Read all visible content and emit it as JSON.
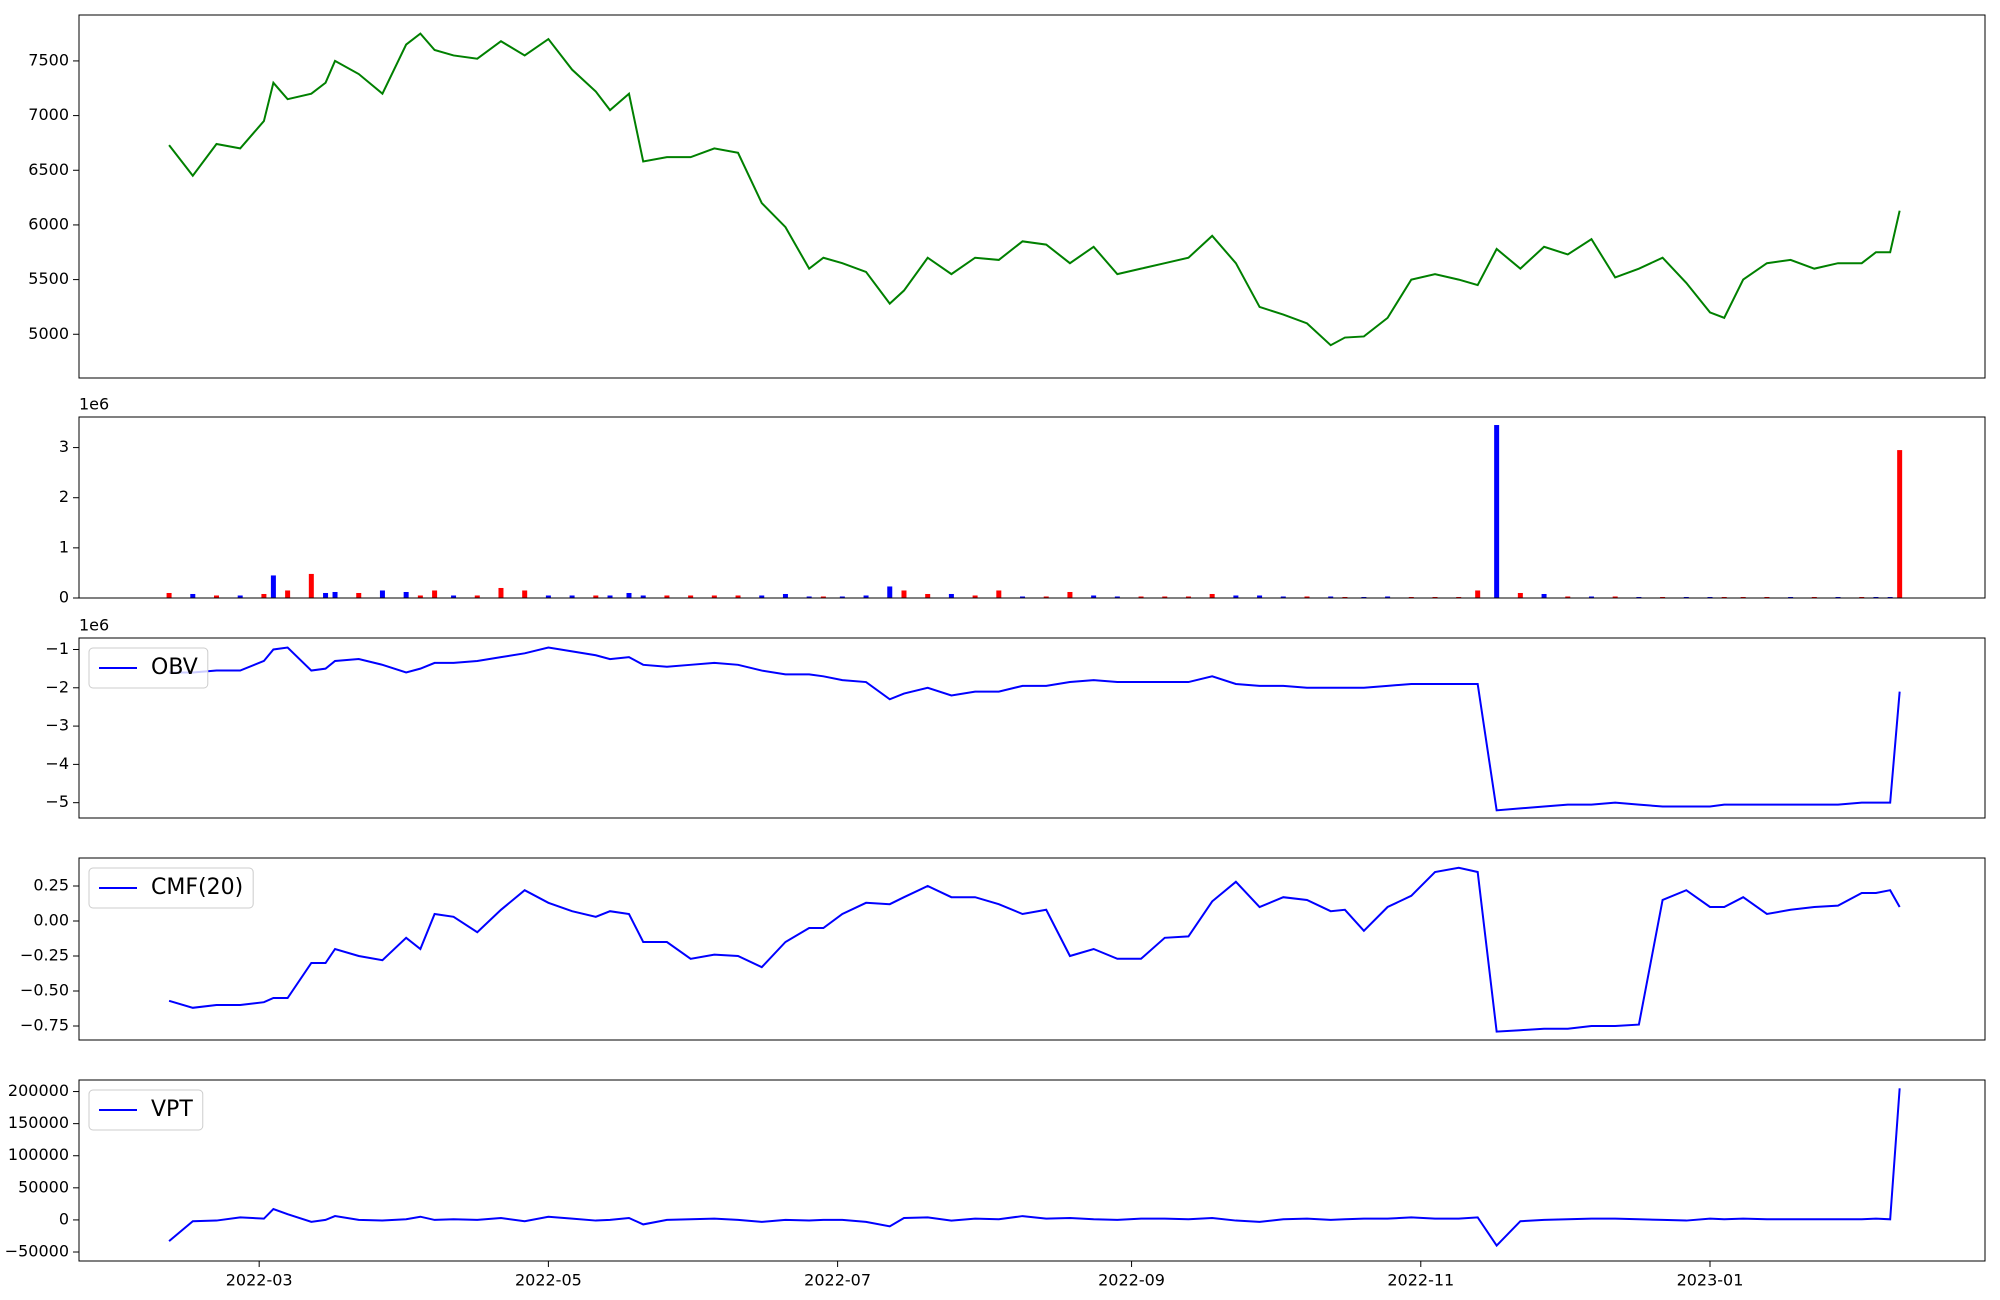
{
  "chart_data": [
    {
      "type": "line",
      "color": "green",
      "x": [
        40,
        45,
        50,
        55,
        60,
        62,
        65,
        70,
        73,
        75,
        80,
        85,
        90,
        93,
        96,
        100,
        105,
        110,
        115,
        120,
        125,
        130,
        133,
        137,
        140,
        145,
        150,
        155,
        160,
        165,
        170,
        175,
        178,
        182,
        187,
        192,
        195,
        200,
        205,
        210,
        215,
        220,
        225,
        230,
        235,
        240,
        245,
        250,
        255,
        260,
        265,
        270,
        275,
        280,
        285,
        288,
        292,
        297,
        302,
        307,
        312,
        316,
        320,
        325,
        330,
        335,
        340,
        345,
        350,
        355,
        360,
        365,
        368,
        372,
        377,
        382,
        387,
        392,
        397,
        400,
        403,
        405
      ],
      "values": [
        6730,
        6450,
        6740,
        6700,
        6950,
        7300,
        7150,
        7200,
        7300,
        7500,
        7380,
        7200,
        7650,
        7750,
        7600,
        7550,
        7520,
        7680,
        7550,
        7700,
        7420,
        7220,
        7050,
        7200,
        6580,
        6620,
        6620,
        6700,
        6660,
        6200,
        5980,
        5600,
        5700,
        5650,
        5570,
        5280,
        5400,
        5700,
        5550,
        5700,
        5680,
        5850,
        5820,
        5650,
        5800,
        5550,
        5600,
        5650,
        5700,
        5900,
        5650,
        5250,
        5180,
        5100,
        4900,
        4970,
        4980,
        5150,
        5500,
        5550,
        5500,
        5450,
        5780,
        5600,
        5800,
        5730,
        5870,
        5520,
        5600,
        5700,
        5470,
        5200,
        5150,
        5500,
        5650,
        5680,
        5600,
        5650,
        5650,
        5750,
        5750,
        6130
      ],
      "xlim": [
        21,
        423
      ],
      "ylim": [
        4600,
        7920
      ],
      "yticks": [
        5000,
        5500,
        6000,
        6500,
        7000,
        7500
      ]
    },
    {
      "type": "bar",
      "y_offset_label": "1e6",
      "x": [
        40,
        45,
        50,
        55,
        60,
        62,
        65,
        70,
        73,
        75,
        80,
        85,
        90,
        93,
        96,
        100,
        105,
        110,
        115,
        120,
        125,
        130,
        133,
        137,
        140,
        145,
        150,
        155,
        160,
        165,
        170,
        175,
        178,
        182,
        187,
        192,
        195,
        200,
        205,
        210,
        215,
        220,
        225,
        230,
        235,
        240,
        245,
        250,
        255,
        260,
        265,
        270,
        275,
        280,
        285,
        288,
        292,
        297,
        302,
        307,
        312,
        316,
        320,
        325,
        330,
        335,
        340,
        345,
        350,
        355,
        360,
        365,
        368,
        372,
        377,
        382,
        387,
        392,
        397,
        400,
        403,
        405
      ],
      "values": [
        0.1,
        0.08,
        0.05,
        0.05,
        0.08,
        0.45,
        0.15,
        0.48,
        0.1,
        0.12,
        0.1,
        0.15,
        0.12,
        0.05,
        0.15,
        0.05,
        0.05,
        0.2,
        0.15,
        0.05,
        0.05,
        0.05,
        0.05,
        0.1,
        0.05,
        0.05,
        0.05,
        0.05,
        0.05,
        0.05,
        0.08,
        0.03,
        0.03,
        0.03,
        0.05,
        0.23,
        0.15,
        0.08,
        0.08,
        0.05,
        0.15,
        0.03,
        0.03,
        0.12,
        0.05,
        0.03,
        0.03,
        0.03,
        0.03,
        0.08,
        0.05,
        0.05,
        0.03,
        0.03,
        0.03,
        0.02,
        0.02,
        0.03,
        0.02,
        0.02,
        0.02,
        0.15,
        3.45,
        0.1,
        0.08,
        0.03,
        0.03,
        0.03,
        0.02,
        0.02,
        0.02,
        0.02,
        0.02,
        0.02,
        0.02,
        0.02,
        0.02,
        0.02,
        0.02,
        0.02,
        0.02,
        2.95
      ],
      "colors": [
        "red",
        "blue",
        "red",
        "blue",
        "red",
        "blue",
        "red",
        "red",
        "blue",
        "blue",
        "red",
        "blue",
        "blue",
        "red",
        "red",
        "blue",
        "red",
        "red",
        "red",
        "blue",
        "blue",
        "red",
        "blue",
        "blue",
        "blue",
        "red",
        "red",
        "red",
        "red",
        "blue",
        "blue",
        "blue",
        "red",
        "blue",
        "blue",
        "blue",
        "red",
        "red",
        "blue",
        "red",
        "red",
        "blue",
        "red",
        "red",
        "blue",
        "blue",
        "red",
        "red",
        "red",
        "red",
        "blue",
        "blue",
        "blue",
        "red",
        "blue",
        "red",
        "blue",
        "blue",
        "red",
        "red",
        "red",
        "red",
        "blue",
        "red",
        "blue",
        "red",
        "blue",
        "red",
        "blue",
        "red",
        "blue",
        "blue",
        "red",
        "red",
        "red",
        "blue",
        "red",
        "blue",
        "red",
        "blue",
        "blue",
        "red"
      ],
      "xlim": [
        21,
        423
      ],
      "ylim": [
        0,
        3.61
      ],
      "yticks": [
        0,
        1,
        2,
        3
      ]
    },
    {
      "type": "line",
      "y_offset_label": "1e6",
      "legend": "upper left",
      "x": [
        40,
        45,
        50,
        55,
        60,
        62,
        65,
        70,
        73,
        75,
        80,
        85,
        90,
        93,
        96,
        100,
        105,
        110,
        115,
        120,
        125,
        130,
        133,
        137,
        140,
        145,
        150,
        155,
        160,
        165,
        170,
        175,
        178,
        182,
        187,
        192,
        195,
        200,
        205,
        210,
        215,
        220,
        225,
        230,
        235,
        240,
        245,
        250,
        255,
        260,
        265,
        270,
        275,
        280,
        285,
        288,
        292,
        297,
        302,
        307,
        312,
        316,
        320,
        325,
        330,
        335,
        340,
        345,
        350,
        355,
        360,
        365,
        368,
        372,
        377,
        382,
        387,
        392,
        397,
        400,
        403,
        405
      ],
      "series": [
        {
          "name": "OBV",
          "color": "blue",
          "values": [
            -1.6,
            -1.6,
            -1.55,
            -1.55,
            -1.3,
            -1.0,
            -0.95,
            -1.55,
            -1.5,
            -1.3,
            -1.25,
            -1.4,
            -1.6,
            -1.5,
            -1.35,
            -1.35,
            -1.3,
            -1.2,
            -1.1,
            -0.95,
            -1.05,
            -1.15,
            -1.25,
            -1.2,
            -1.4,
            -1.45,
            -1.4,
            -1.35,
            -1.4,
            -1.55,
            -1.65,
            -1.65,
            -1.7,
            -1.8,
            -1.85,
            -2.3,
            -2.15,
            -2.0,
            -2.2,
            -2.1,
            -2.1,
            -1.95,
            -1.95,
            -1.85,
            -1.8,
            -1.85,
            -1.85,
            -1.85,
            -1.85,
            -1.7,
            -1.9,
            -1.95,
            -1.95,
            -2.0,
            -2.0,
            -2.0,
            -2.0,
            -1.95,
            -1.9,
            -1.9,
            -1.9,
            -1.9,
            -5.2,
            -5.15,
            -5.1,
            -5.05,
            -5.05,
            -5.0,
            -5.05,
            -5.1,
            -5.1,
            -5.1,
            -5.05,
            -5.05,
            -5.05,
            -5.05,
            -5.05,
            -5.05,
            -5.0,
            -5.0,
            -5.0,
            -2.1
          ]
        }
      ],
      "xlim": [
        21,
        423
      ],
      "ylim": [
        -5.4,
        -0.7
      ],
      "yticks": [
        {
          "value": -5,
          "label": "−5"
        },
        {
          "value": -4,
          "label": "−4"
        },
        {
          "value": -3,
          "label": "−3"
        },
        {
          "value": -2,
          "label": "−2"
        },
        {
          "value": -1,
          "label": "−1"
        }
      ]
    },
    {
      "type": "line",
      "legend": "upper left",
      "x": [
        40,
        45,
        50,
        55,
        60,
        62,
        65,
        70,
        73,
        75,
        80,
        85,
        90,
        93,
        96,
        100,
        105,
        110,
        115,
        120,
        125,
        130,
        133,
        137,
        140,
        145,
        150,
        155,
        160,
        165,
        170,
        175,
        178,
        182,
        187,
        192,
        195,
        200,
        205,
        210,
        215,
        220,
        225,
        230,
        235,
        240,
        245,
        250,
        255,
        260,
        265,
        270,
        275,
        280,
        285,
        288,
        292,
        297,
        302,
        307,
        312,
        316,
        320,
        325,
        330,
        335,
        340,
        345,
        350,
        355,
        360,
        365,
        368,
        372,
        377,
        382,
        387,
        392,
        397,
        400,
        403,
        405
      ],
      "series": [
        {
          "name": "CMF(20)",
          "color": "blue",
          "values": [
            -0.57,
            -0.62,
            -0.6,
            -0.6,
            -0.58,
            -0.55,
            -0.55,
            -0.3,
            -0.3,
            -0.2,
            -0.25,
            -0.28,
            -0.12,
            -0.2,
            0.05,
            0.03,
            -0.08,
            0.08,
            0.22,
            0.13,
            0.07,
            0.03,
            0.07,
            0.05,
            -0.15,
            -0.15,
            -0.27,
            -0.24,
            -0.25,
            -0.33,
            -0.15,
            -0.05,
            -0.05,
            0.05,
            0.13,
            0.12,
            0.17,
            0.25,
            0.17,
            0.17,
            0.12,
            0.05,
            0.08,
            -0.25,
            -0.2,
            -0.27,
            -0.27,
            -0.12,
            -0.11,
            0.14,
            0.28,
            0.1,
            0.17,
            0.15,
            0.07,
            0.08,
            -0.07,
            0.1,
            0.18,
            0.35,
            0.38,
            0.35,
            -0.79,
            -0.78,
            -0.77,
            -0.77,
            -0.75,
            -0.75,
            -0.74,
            0.15,
            0.22,
            0.1,
            0.1,
            0.17,
            0.05,
            0.08,
            0.1,
            0.11,
            0.2,
            0.2,
            0.22,
            0.1
          ]
        }
      ],
      "xlim": [
        21,
        423
      ],
      "ylim": [
        -0.85,
        0.45
      ],
      "yticks": [
        {
          "value": -0.75,
          "label": "−0.75"
        },
        {
          "value": -0.5,
          "label": "−0.50"
        },
        {
          "value": -0.25,
          "label": "−0.25"
        },
        {
          "value": 0,
          "label": "0.00"
        },
        {
          "value": 0.25,
          "label": "0.25"
        }
      ]
    },
    {
      "type": "line",
      "legend": "upper left",
      "x": [
        40,
        45,
        50,
        55,
        60,
        62,
        65,
        70,
        73,
        75,
        80,
        85,
        90,
        93,
        96,
        100,
        105,
        110,
        115,
        120,
        125,
        130,
        133,
        137,
        140,
        145,
        150,
        155,
        160,
        165,
        170,
        175,
        178,
        182,
        187,
        192,
        195,
        200,
        205,
        210,
        215,
        220,
        225,
        230,
        235,
        240,
        245,
        250,
        255,
        260,
        265,
        270,
        275,
        280,
        285,
        288,
        292,
        297,
        302,
        307,
        312,
        316,
        320,
        325,
        330,
        335,
        340,
        345,
        350,
        355,
        360,
        365,
        368,
        372,
        377,
        382,
        387,
        392,
        397,
        400,
        403,
        405
      ],
      "series": [
        {
          "name": "VPT",
          "color": "blue",
          "values": [
            -33000,
            -2000,
            -1000,
            4000,
            2000,
            17000,
            9000,
            -3000,
            0,
            6000,
            0,
            -1000,
            1000,
            5000,
            0,
            1000,
            0,
            3000,
            -2000,
            5000,
            2000,
            -1000,
            0,
            3000,
            -7000,
            0,
            1000,
            2000,
            0,
            -3000,
            0,
            -1000,
            0,
            0,
            -3000,
            -10000,
            3000,
            4000,
            -1000,
            2000,
            1000,
            6000,
            2000,
            3000,
            1000,
            0,
            2000,
            2000,
            1000,
            3000,
            -1000,
            -3000,
            1000,
            2000,
            0,
            1000,
            2000,
            2000,
            4000,
            2000,
            2000,
            4000,
            -40000,
            -2000,
            0,
            1000,
            2000,
            2000,
            1000,
            0,
            -1000,
            2000,
            1000,
            2000,
            1000,
            1000,
            1000,
            1000,
            1000,
            2000,
            1000,
            205000
          ]
        }
      ],
      "xlim": [
        21,
        423
      ],
      "ylim": [
        -64000,
        218000
      ],
      "yticks": [
        {
          "value": -50000,
          "label": "−50000"
        },
        0,
        50000,
        100000,
        150000,
        200000
      ],
      "xticks": [
        {
          "value": 59,
          "label": "2022-03"
        },
        {
          "value": 120,
          "label": "2022-05"
        },
        {
          "value": 181,
          "label": "2022-07"
        },
        {
          "value": 243,
          "label": "2022-09"
        },
        {
          "value": 304,
          "label": "2022-11"
        },
        {
          "value": 365,
          "label": "2023-01"
        }
      ]
    }
  ]
}
